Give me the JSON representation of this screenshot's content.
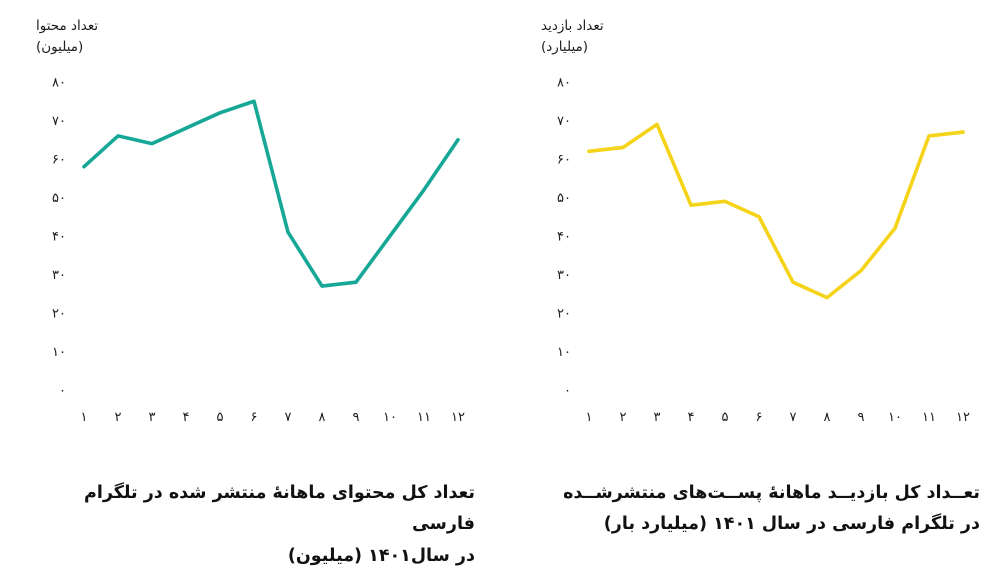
{
  "chart_data": [
    {
      "type": "line",
      "id": "content-per-month",
      "axis_title": "تعداد محتوا",
      "axis_unit": "(میلیون)",
      "categories": [
        "۱",
        "۲",
        "۳",
        "۴",
        "۵",
        "۶",
        "۷",
        "۸",
        "۹",
        "۱۰",
        "۱۱",
        "۱۲"
      ],
      "values": [
        58,
        66,
        64,
        68,
        72,
        75,
        41,
        27,
        28,
        40,
        52,
        65
      ],
      "ylim": [
        0,
        80
      ],
      "y_ticks": [
        {
          "value": 80,
          "label": "۸۰"
        },
        {
          "value": 70,
          "label": "۷۰"
        },
        {
          "value": 60,
          "label": "۶۰"
        },
        {
          "value": 50,
          "label": "۵۰"
        },
        {
          "value": 40,
          "label": "۴۰"
        },
        {
          "value": 30,
          "label": "۳۰"
        },
        {
          "value": 20,
          "label": "۲۰"
        },
        {
          "value": 10,
          "label": "۱۰"
        },
        {
          "value": 0,
          "label": "۰"
        }
      ],
      "line_color": "#16a797",
      "grid": false,
      "legend": "none",
      "caption_line1": "تعداد کل محتوای ماهانهٔ منتشر شده در تلگرام فارسی",
      "caption_line2": "در سال۱۴۰۱ (میلیون)"
    },
    {
      "type": "line",
      "id": "views-per-month",
      "axis_title": "تعداد بازدید",
      "axis_unit": "(میلیارد)",
      "categories": [
        "۱",
        "۲",
        "۳",
        "۴",
        "۵",
        "۶",
        "۷",
        "۸",
        "۹",
        "۱۰",
        "۱۱",
        "۱۲"
      ],
      "values": [
        62,
        63,
        69,
        48,
        49,
        45,
        28,
        24,
        31,
        42,
        66,
        67
      ],
      "ylim": [
        0,
        80
      ],
      "y_ticks": [
        {
          "value": 80,
          "label": "۸۰"
        },
        {
          "value": 70,
          "label": "۷۰"
        },
        {
          "value": 60,
          "label": "۶۰"
        },
        {
          "value": 50,
          "label": "۵۰"
        },
        {
          "value": 40,
          "label": "۴۰"
        },
        {
          "value": 30,
          "label": "۳۰"
        },
        {
          "value": 20,
          "label": "۲۰"
        },
        {
          "value": 10,
          "label": "۱۰"
        },
        {
          "value": 0,
          "label": "۰"
        }
      ],
      "line_color": "#f5d318",
      "grid": false,
      "legend": "none",
      "caption_line1": "تعــداد کل بازدیــد ماهانهٔ پســت‌های منتشرشــده",
      "caption_line2": "در تلگرام فارسی در سال ۱۴۰۱ (میلیارد بار)"
    }
  ]
}
